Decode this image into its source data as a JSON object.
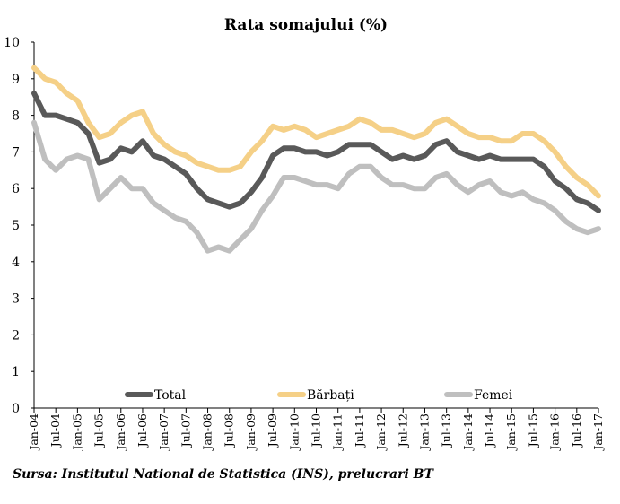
{
  "chart_data": {
    "type": "line",
    "title": "Rata somajului (%)",
    "xlabel": "",
    "ylabel": "",
    "ylim": [
      0,
      10
    ],
    "yticks": [
      "0",
      "1",
      "2",
      "3",
      "4",
      "5",
      "6",
      "7",
      "8",
      "9",
      "10"
    ],
    "xtick_labels": [
      "Jan-04",
      "Jul-04",
      "Jan-05",
      "Jul-05",
      "Jan-06",
      "Jul-06",
      "Jan-07",
      "Jul-07",
      "Jan-08",
      "Jul-08",
      "Jan-09",
      "Jul-09",
      "Jan-10",
      "Jul-10",
      "Jan-11",
      "Jul-11",
      "Jan-12",
      "Jul-12",
      "Jan-13",
      "Jul-13",
      "Jan-14",
      "Jul-14",
      "Jan-15",
      "Jul-15",
      "Jan-16",
      "Jul-16",
      "Jan-17"
    ],
    "x": [
      "2004-01",
      "2004-04",
      "2004-07",
      "2004-10",
      "2005-01",
      "2005-04",
      "2005-07",
      "2005-10",
      "2006-01",
      "2006-04",
      "2006-07",
      "2006-10",
      "2007-01",
      "2007-04",
      "2007-07",
      "2007-10",
      "2008-01",
      "2008-04",
      "2008-07",
      "2008-10",
      "2009-01",
      "2009-04",
      "2009-07",
      "2009-10",
      "2010-01",
      "2010-04",
      "2010-07",
      "2010-10",
      "2011-01",
      "2011-04",
      "2011-07",
      "2011-10",
      "2012-01",
      "2012-04",
      "2012-07",
      "2012-10",
      "2013-01",
      "2013-04",
      "2013-07",
      "2013-10",
      "2014-01",
      "2014-04",
      "2014-07",
      "2014-10",
      "2015-01",
      "2015-04",
      "2015-07",
      "2015-10",
      "2016-01",
      "2016-04",
      "2016-07",
      "2016-10",
      "2017-01"
    ],
    "grid": false,
    "legend_position": "bottom",
    "series": [
      {
        "name": "Total",
        "color": "#595959",
        "values": [
          8.6,
          8.0,
          8.0,
          7.9,
          7.8,
          7.5,
          6.7,
          6.8,
          7.1,
          7.0,
          7.3,
          6.9,
          6.8,
          6.6,
          6.4,
          6.0,
          5.7,
          5.6,
          5.5,
          5.6,
          5.9,
          6.3,
          6.9,
          7.1,
          7.1,
          7.0,
          7.0,
          6.9,
          7.0,
          7.2,
          7.2,
          7.2,
          7.0,
          6.8,
          6.9,
          6.8,
          6.9,
          7.2,
          7.3,
          7.0,
          6.9,
          6.8,
          6.9,
          6.8,
          6.8,
          6.8,
          6.8,
          6.6,
          6.2,
          6.0,
          5.7,
          5.6,
          5.4
        ]
      },
      {
        "name": "Bărbați",
        "color": "#f5d087",
        "values": [
          9.3,
          9.0,
          8.9,
          8.6,
          8.4,
          7.8,
          7.4,
          7.5,
          7.8,
          8.0,
          8.1,
          7.5,
          7.2,
          7.0,
          6.9,
          6.7,
          6.6,
          6.5,
          6.5,
          6.6,
          7.0,
          7.3,
          7.7,
          7.6,
          7.7,
          7.6,
          7.4,
          7.5,
          7.6,
          7.7,
          7.9,
          7.8,
          7.6,
          7.6,
          7.5,
          7.4,
          7.5,
          7.8,
          7.9,
          7.7,
          7.5,
          7.4,
          7.4,
          7.3,
          7.3,
          7.5,
          7.5,
          7.3,
          7.0,
          6.6,
          6.3,
          6.1,
          5.8
        ]
      },
      {
        "name": "Femei",
        "color": "#bfbfbf",
        "values": [
          7.8,
          6.8,
          6.5,
          6.8,
          6.9,
          6.8,
          5.7,
          6.0,
          6.3,
          6.0,
          6.0,
          5.6,
          5.4,
          5.2,
          5.1,
          4.8,
          4.3,
          4.4,
          4.3,
          4.6,
          4.9,
          5.4,
          5.8,
          6.3,
          6.3,
          6.2,
          6.1,
          6.1,
          6.0,
          6.4,
          6.6,
          6.6,
          6.3,
          6.1,
          6.1,
          6.0,
          6.0,
          6.3,
          6.4,
          6.1,
          5.9,
          6.1,
          6.2,
          5.9,
          5.8,
          5.9,
          5.7,
          5.6,
          5.4,
          5.1,
          4.9,
          4.8,
          4.9
        ]
      }
    ]
  },
  "legend": [
    {
      "label": "Total",
      "color": "#595959"
    },
    {
      "label": "Bărbați",
      "color": "#f5d087"
    },
    {
      "label": "Femei",
      "color": "#bfbfbf"
    }
  ],
  "source": "Sursa: Institutul National de Statistica (INS), prelucrari BT"
}
